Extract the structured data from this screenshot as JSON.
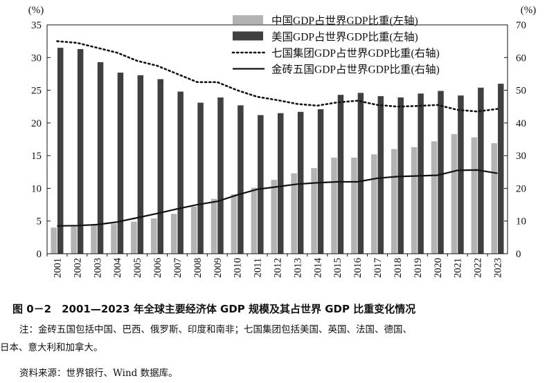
{
  "chart_data": {
    "type": "bar",
    "categories": [
      "2001",
      "2002",
      "2003",
      "2004",
      "2005",
      "2006",
      "2007",
      "2008",
      "2009",
      "2010",
      "2011",
      "2012",
      "2013",
      "2014",
      "2015",
      "2016",
      "2017",
      "2018",
      "2019",
      "2020",
      "2021",
      "2022",
      "2023"
    ],
    "left_axis": {
      "unit": "(%)",
      "ylim": [
        0,
        35
      ],
      "ticks": [
        0,
        5,
        10,
        15,
        20,
        25,
        30,
        35
      ]
    },
    "right_axis": {
      "unit": "(%)",
      "ylim": [
        0,
        70
      ],
      "ticks": [
        0,
        10,
        20,
        30,
        40,
        50,
        60,
        70
      ]
    },
    "legend_position": "top-right",
    "series": [
      {
        "name": "中国GDP占世界GDP比重(左轴)",
        "type": "bar",
        "axis": "left",
        "color": "#b3b3b3",
        "values": [
          4.0,
          4.3,
          4.5,
          4.6,
          4.9,
          5.4,
          6.1,
          7.2,
          8.4,
          9.1,
          10.1,
          11.3,
          12.3,
          13.1,
          14.7,
          14.7,
          15.2,
          16.0,
          16.3,
          17.2,
          18.3,
          17.8,
          16.9
        ]
      },
      {
        "name": "美国GDP占世界GDP比重(左轴)",
        "type": "bar",
        "axis": "left",
        "color": "#404040",
        "values": [
          31.5,
          31.3,
          29.3,
          27.7,
          27.3,
          26.7,
          24.8,
          23.1,
          23.9,
          22.7,
          21.2,
          21.5,
          21.7,
          22.1,
          24.3,
          24.6,
          24.1,
          23.9,
          24.5,
          24.9,
          24.2,
          25.4,
          26.0
        ]
      },
      {
        "name": "七国集团GDP占世界GDP比重(右轴)",
        "type": "line",
        "axis": "right",
        "style": "dotted",
        "color": "#111111",
        "values": [
          65.0,
          64.5,
          63.0,
          61.5,
          59.0,
          57.5,
          55.0,
          52.5,
          52.5,
          50.0,
          48.0,
          47.0,
          45.8,
          45.3,
          46.3,
          46.8,
          45.5,
          45.0,
          45.2,
          45.5,
          44.0,
          43.5,
          44.3
        ]
      },
      {
        "name": "金砖五国GDP占世界GDP比重(右轴)",
        "type": "line",
        "axis": "right",
        "style": "solid",
        "color": "#111111",
        "values": [
          8.5,
          8.6,
          8.9,
          9.7,
          11.0,
          12.3,
          13.7,
          15.0,
          16.0,
          18.0,
          19.7,
          20.5,
          21.3,
          21.7,
          22.0,
          22.0,
          23.1,
          23.6,
          23.8,
          24.0,
          25.5,
          25.6,
          24.6
        ]
      }
    ]
  },
  "caption": "图 0－2　2001—2023 年全球主要经济体 GDP 规模及其占世界 GDP 比重变化情况",
  "note_line1": "注：金砖五国包括中国、巴西、俄罗斯、印度和南非；七国集团包括美国、英国、法国、德国、",
  "note_line2": "日本、意大利和加拿大。",
  "source": "资料来源：世界银行、Wind 数据库。"
}
